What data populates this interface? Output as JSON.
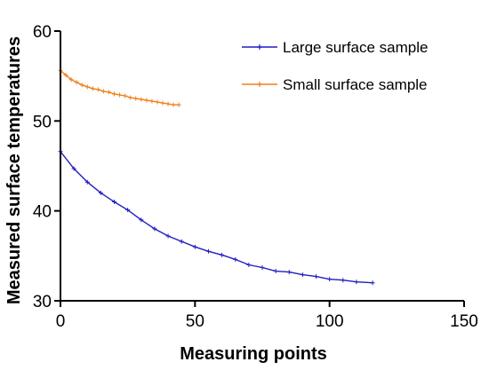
{
  "chart_data": {
    "type": "line",
    "xlabel": "Measuring points",
    "ylabel": "Measured surface temperatures",
    "xlim": [
      0,
      150
    ],
    "ylim": [
      30,
      60
    ],
    "xticks": [
      0,
      50,
      100,
      150
    ],
    "yticks": [
      30,
      40,
      50,
      60
    ],
    "grid": false,
    "legend_position": "top-right",
    "series": [
      {
        "name": "Large surface sample",
        "color": "#1f1fbf",
        "marker": "plus",
        "x": [
          0,
          5,
          10,
          15,
          20,
          25,
          30,
          35,
          40,
          45,
          50,
          55,
          60,
          65,
          70,
          75,
          80,
          85,
          90,
          95,
          100,
          105,
          110,
          116
        ],
        "y": [
          46.6,
          44.7,
          43.2,
          42.0,
          41.0,
          40.1,
          39.0,
          38.0,
          37.2,
          36.6,
          36.0,
          35.5,
          35.1,
          34.6,
          34.0,
          33.7,
          33.3,
          33.2,
          32.9,
          32.7,
          32.4,
          32.3,
          32.1,
          32.0
        ]
      },
      {
        "name": "Small surface sample",
        "color": "#f07f1e",
        "marker": "plus",
        "x": [
          0,
          2,
          4,
          6,
          8,
          10,
          12,
          14,
          16,
          18,
          20,
          22,
          24,
          26,
          28,
          30,
          32,
          34,
          36,
          38,
          40,
          42,
          44
        ],
        "y": [
          55.6,
          55.1,
          54.6,
          54.3,
          54.0,
          53.8,
          53.6,
          53.5,
          53.3,
          53.2,
          53.0,
          52.9,
          52.8,
          52.6,
          52.5,
          52.4,
          52.3,
          52.2,
          52.1,
          52.0,
          51.9,
          51.8,
          51.8
        ]
      }
    ]
  }
}
